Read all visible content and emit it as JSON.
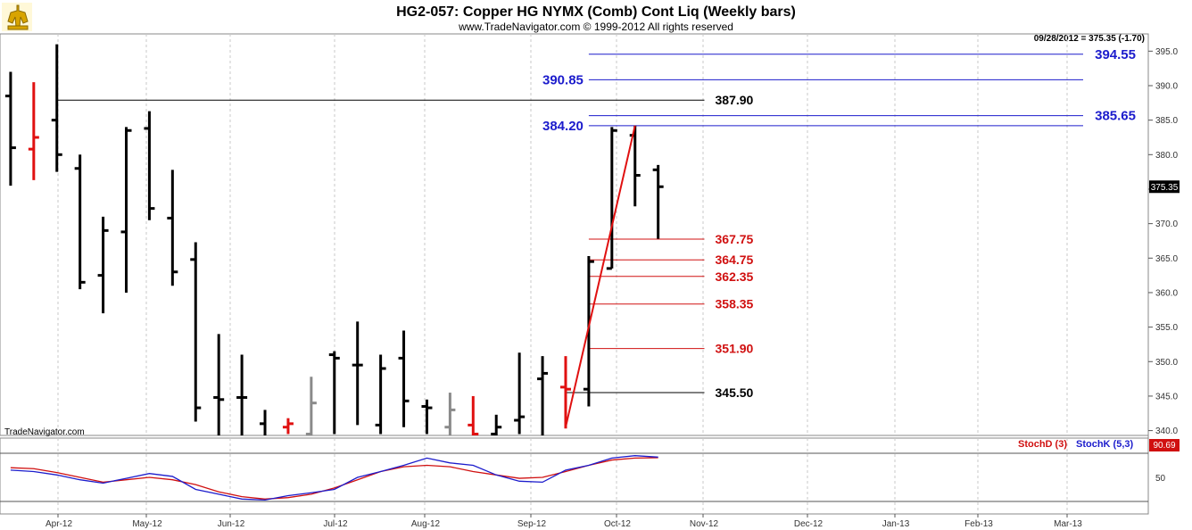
{
  "header": {
    "title": "HG2-057:  Copper HG NYMX (Comb) Cont Liq  (Weekly bars)",
    "copyright": "www.TradeNavigator.com © 1999-2012 All rights reserved",
    "last_quote": "09/28/2012 = 375.35 (-1.70)",
    "watermark": "TradeNavigator.com",
    "logo_icon": "trade-navigator-logo-icon"
  },
  "colors": {
    "up_bar": "#000000",
    "red_bar": "#e01010",
    "gray_bar": "#8a8a8a",
    "blue_level": "#1c1ccc",
    "red_level": "#d01010",
    "stoch_d": "#d01010",
    "stoch_k": "#1c1ccc",
    "grid": "#c8c8c8"
  },
  "chart_data": [
    {
      "type": "ohlc",
      "title": "HG2-057:  Copper HG NYMX (Comb) Cont Liq  (Weekly bars)",
      "x_axis_labels": [
        "Apr-12",
        "May-12",
        "Jun-12",
        "Jul-12",
        "Aug-12",
        "Sep-12",
        "Oct-12",
        "Nov-12",
        "Dec-12",
        "Jan-13",
        "Feb-13",
        "Mar-13"
      ],
      "y_ticks": [
        340,
        345,
        350,
        355,
        360,
        365,
        370,
        375,
        380,
        385,
        390,
        395
      ],
      "ylim": [
        339.3,
        397.5
      ],
      "last_price": "375.35",
      "bars": [
        {
          "week": 1,
          "open": 388.5,
          "high": 392.0,
          "low": 375.5,
          "close": 381.0,
          "color": "black"
        },
        {
          "week": 2,
          "open": 380.8,
          "high": 390.5,
          "low": 376.3,
          "close": 382.5,
          "color": "red"
        },
        {
          "week": 3,
          "open": 385.0,
          "high": 396.0,
          "low": 377.5,
          "close": 380.0,
          "color": "black"
        },
        {
          "week": 4,
          "open": 378.0,
          "high": 380.0,
          "low": 360.5,
          "close": 361.5,
          "color": "black"
        },
        {
          "week": 5,
          "open": 362.5,
          "high": 371.0,
          "low": 357.0,
          "close": 369.0,
          "color": "black"
        },
        {
          "week": 6,
          "open": 368.8,
          "high": 384.0,
          "low": 360.0,
          "close": 383.5,
          "color": "black"
        },
        {
          "week": 7,
          "open": 383.8,
          "high": 386.3,
          "low": 370.5,
          "close": 372.2,
          "color": "black"
        },
        {
          "week": 8,
          "open": 370.8,
          "high": 377.8,
          "low": 361.0,
          "close": 363.0,
          "color": "black"
        },
        {
          "week": 9,
          "open": 364.8,
          "high": 367.3,
          "low": 341.3,
          "close": 343.3,
          "color": "black"
        },
        {
          "week": 10,
          "open": 344.8,
          "high": 354.0,
          "low": 338.5,
          "close": 344.5,
          "color": "black"
        },
        {
          "week": 11,
          "open": 344.8,
          "high": 351.0,
          "low": 339.0,
          "close": 344.8,
          "color": "black"
        },
        {
          "week": 12,
          "open": 341.0,
          "high": 343.0,
          "low": 335.0,
          "close": 337.5,
          "color": "black"
        },
        {
          "week": 13,
          "open": 340.5,
          "high": 341.8,
          "low": 339.5,
          "close": 341.0,
          "color": "red"
        },
        {
          "week": 14,
          "open": 339.5,
          "high": 347.8,
          "low": 338.0,
          "close": 344.0,
          "color": "gray"
        },
        {
          "week": 15,
          "open": 351.0,
          "high": 351.5,
          "low": 339.5,
          "close": 350.5,
          "color": "black"
        },
        {
          "week": 16,
          "open": 349.5,
          "high": 355.8,
          "low": 340.8,
          "close": 349.5,
          "color": "black"
        },
        {
          "week": 17,
          "open": 340.8,
          "high": 351.0,
          "low": 339.5,
          "close": 349.0,
          "color": "black"
        },
        {
          "week": 18,
          "open": 350.5,
          "high": 354.5,
          "low": 340.5,
          "close": 344.3,
          "color": "black"
        },
        {
          "week": 19,
          "open": 343.5,
          "high": 344.5,
          "low": 339.5,
          "close": 343.3,
          "color": "black"
        },
        {
          "week": 20,
          "open": 340.5,
          "high": 345.5,
          "low": 339.0,
          "close": 343.0,
          "color": "gray"
        },
        {
          "week": 21,
          "open": 340.8,
          "high": 345.0,
          "low": 339.3,
          "close": 339.5,
          "color": "red"
        },
        {
          "week": 22,
          "open": 339.5,
          "high": 342.3,
          "low": 339.0,
          "close": 340.5,
          "color": "black"
        },
        {
          "week": 23,
          "open": 341.5,
          "high": 351.3,
          "low": 339.5,
          "close": 342.0,
          "color": "black"
        },
        {
          "week": 24,
          "open": 347.5,
          "high": 350.8,
          "low": 337.8,
          "close": 348.3,
          "color": "black"
        },
        {
          "week": 25,
          "open": 346.3,
          "high": 350.8,
          "low": 340.3,
          "close": 346.0,
          "color": "red"
        },
        {
          "week": 26,
          "open": 346.0,
          "high": 365.3,
          "low": 343.5,
          "close": 364.5,
          "color": "black"
        },
        {
          "week": 27,
          "open": 363.5,
          "high": 384.0,
          "low": 363.5,
          "close": 383.5,
          "color": "black"
        },
        {
          "week": 28,
          "open": 382.8,
          "high": 384.2,
          "low": 372.5,
          "close": 377.0,
          "color": "black"
        },
        {
          "week": 29,
          "open": 377.8,
          "high": 378.5,
          "low": 367.8,
          "close": 375.35,
          "color": "black"
        }
      ],
      "levels": [
        {
          "label": "394.55",
          "value": 394.55,
          "color": "blue",
          "x_from_week": 26.0,
          "x_to_week": 50.0,
          "label_side": "right"
        },
        {
          "label": "390.85",
          "value": 390.85,
          "color": "blue",
          "x_from_week": 26.0,
          "x_to_week": 50.0,
          "label_side": "left"
        },
        {
          "label": "387.90",
          "value": 387.9,
          "color": "black",
          "x_from_week": 3.0,
          "x_to_week": 31.0,
          "label_side": "right"
        },
        {
          "label": "385.65",
          "value": 385.65,
          "color": "blue",
          "x_from_week": 26.0,
          "x_to_week": 50.0,
          "label_side": "right"
        },
        {
          "label": "384.20",
          "value": 384.2,
          "color": "blue",
          "x_from_week": 26.0,
          "x_to_week": 50.0,
          "label_side": "left"
        },
        {
          "label": "367.75",
          "value": 367.75,
          "color": "red",
          "x_from_week": 26.0,
          "x_to_week": 31.0,
          "label_side": "right"
        },
        {
          "label": "364.75",
          "value": 364.75,
          "color": "red",
          "x_from_week": 26.0,
          "x_to_week": 31.0,
          "label_side": "right"
        },
        {
          "label": "362.35",
          "value": 362.35,
          "color": "red",
          "x_from_week": 26.0,
          "x_to_week": 31.0,
          "label_side": "right"
        },
        {
          "label": "358.35",
          "value": 358.35,
          "color": "red",
          "x_from_week": 26.0,
          "x_to_week": 31.0,
          "label_side": "right"
        },
        {
          "label": "351.90",
          "value": 351.9,
          "color": "red",
          "x_from_week": 26.0,
          "x_to_week": 31.0,
          "label_side": "right"
        },
        {
          "label": "345.50",
          "value": 345.5,
          "color": "black",
          "x_from_week": 25.0,
          "x_to_week": 31.0,
          "label_side": "right"
        }
      ],
      "swing_line": [
        {
          "week": 25,
          "value": 340.5
        },
        {
          "week": 28,
          "value": 384.2
        }
      ]
    },
    {
      "type": "line",
      "legend": [
        "StochD (3)",
        "StochK (5,3)"
      ],
      "y_ticks": [
        50
      ],
      "ylim": [
        0,
        100
      ],
      "last_value": "90.69",
      "series": [
        {
          "name": "StochD (3)",
          "values": [
            70,
            68,
            60,
            50,
            40,
            45,
            50,
            45,
            35,
            20,
            10,
            5,
            8,
            15,
            28,
            45,
            62,
            72,
            75,
            72,
            62,
            55,
            48,
            50,
            62,
            75,
            86,
            90,
            90.69
          ]
        },
        {
          "name": "StochK (5,3)",
          "values": [
            65,
            62,
            55,
            45,
            38,
            48,
            58,
            52,
            25,
            15,
            5,
            3,
            12,
            18,
            25,
            50,
            62,
            75,
            90,
            80,
            75,
            55,
            42,
            40,
            65,
            75,
            90,
            95,
            92
          ]
        }
      ]
    }
  ]
}
